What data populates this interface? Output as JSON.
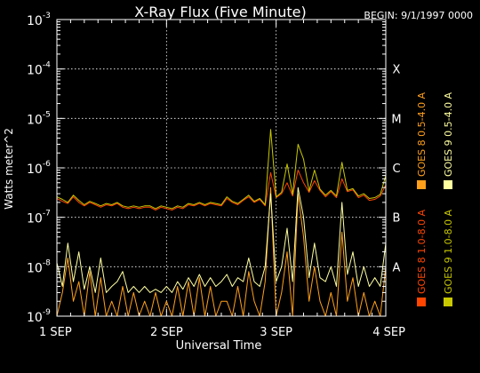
{
  "chart_data": {
    "type": "line",
    "title": "X-Ray Flux (Five Minute)",
    "begin_label": "BEGIN: 9/1/1997 0000",
    "xlabel": "Universal Time",
    "ylabel": "Watts meter^2",
    "y_scale": "log",
    "ylim": [
      1e-09,
      0.001
    ],
    "xlim": [
      0,
      3
    ],
    "grid": true,
    "x_ticks": [
      {
        "value": 0,
        "label": "1 SEP"
      },
      {
        "value": 1,
        "label": "2 SEP"
      },
      {
        "value": 2,
        "label": "3 SEP"
      },
      {
        "value": 3,
        "label": "4 SEP"
      }
    ],
    "y_ticks": [
      {
        "exp": -3,
        "base": "10",
        "sup": "-3"
      },
      {
        "exp": -4,
        "base": "10",
        "sup": "-4"
      },
      {
        "exp": -5,
        "base": "10",
        "sup": "-5"
      },
      {
        "exp": -6,
        "base": "10",
        "sup": "-6"
      },
      {
        "exp": -7,
        "base": "10",
        "sup": "-7"
      },
      {
        "exp": -8,
        "base": "10",
        "sup": "-8"
      },
      {
        "exp": -9,
        "base": "10",
        "sup": "-9"
      }
    ],
    "flare_classes": [
      {
        "label": "X",
        "exp": -4
      },
      {
        "label": "M",
        "exp": -5
      },
      {
        "label": "C",
        "exp": -6
      },
      {
        "label": "B",
        "exp": -7
      },
      {
        "label": "A",
        "exp": -8
      }
    ],
    "series": [
      {
        "name": "GOES 8 1.0-8.0 A",
        "color": "#ff4500",
        "points": [
          [
            0.0,
            2.4e-07
          ],
          [
            0.05,
            2.1e-07
          ],
          [
            0.1,
            1.9e-07
          ],
          [
            0.15,
            2.6e-07
          ],
          [
            0.2,
            2e-07
          ],
          [
            0.25,
            1.7e-07
          ],
          [
            0.3,
            2e-07
          ],
          [
            0.35,
            1.8e-07
          ],
          [
            0.4,
            1.6e-07
          ],
          [
            0.45,
            1.8e-07
          ],
          [
            0.5,
            1.7e-07
          ],
          [
            0.55,
            1.9e-07
          ],
          [
            0.6,
            1.6e-07
          ],
          [
            0.65,
            1.5e-07
          ],
          [
            0.7,
            1.6e-07
          ],
          [
            0.75,
            1.5e-07
          ],
          [
            0.8,
            1.6e-07
          ],
          [
            0.85,
            1.6e-07
          ],
          [
            0.9,
            1.4e-07
          ],
          [
            0.95,
            1.6e-07
          ],
          [
            1.0,
            1.5e-07
          ],
          [
            1.05,
            1.4e-07
          ],
          [
            1.1,
            1.6e-07
          ],
          [
            1.15,
            1.5e-07
          ],
          [
            1.2,
            1.8e-07
          ],
          [
            1.25,
            1.7e-07
          ],
          [
            1.3,
            1.9e-07
          ],
          [
            1.35,
            1.7e-07
          ],
          [
            1.4,
            1.9e-07
          ],
          [
            1.45,
            1.8e-07
          ],
          [
            1.5,
            1.7e-07
          ],
          [
            1.55,
            2.4e-07
          ],
          [
            1.6,
            2e-07
          ],
          [
            1.65,
            1.8e-07
          ],
          [
            1.7,
            2.2e-07
          ],
          [
            1.75,
            2.6e-07
          ],
          [
            1.8,
            2e-07
          ],
          [
            1.85,
            2.3e-07
          ],
          [
            1.9,
            1.7e-07
          ],
          [
            1.95,
            8e-07
          ],
          [
            2.0,
            2.5e-07
          ],
          [
            2.05,
            3e-07
          ],
          [
            2.1,
            5e-07
          ],
          [
            2.15,
            2.7e-07
          ],
          [
            2.2,
            9e-07
          ],
          [
            2.25,
            5e-07
          ],
          [
            2.3,
            3.2e-07
          ],
          [
            2.35,
            5.5e-07
          ],
          [
            2.4,
            3.5e-07
          ],
          [
            2.45,
            2.6e-07
          ],
          [
            2.5,
            3.3e-07
          ],
          [
            2.55,
            2.5e-07
          ],
          [
            2.6,
            6e-07
          ],
          [
            2.65,
            3.3e-07
          ],
          [
            2.7,
            3.6e-07
          ],
          [
            2.75,
            2.5e-07
          ],
          [
            2.8,
            2.8e-07
          ],
          [
            2.85,
            2.2e-07
          ],
          [
            2.9,
            2.3e-07
          ],
          [
            2.95,
            2.7e-07
          ],
          [
            3.0,
            4.5e-07
          ]
        ]
      },
      {
        "name": "GOES 8 0.5-4.0 A",
        "color": "#ff9f1a",
        "points": [
          [
            0.0,
            1e-09
          ],
          [
            0.05,
            3e-09
          ],
          [
            0.1,
            1.5e-08
          ],
          [
            0.15,
            2e-09
          ],
          [
            0.2,
            5e-09
          ],
          [
            0.25,
            1e-09
          ],
          [
            0.3,
            8e-09
          ],
          [
            0.35,
            1e-09
          ],
          [
            0.4,
            6e-09
          ],
          [
            0.45,
            1e-09
          ],
          [
            0.5,
            2e-09
          ],
          [
            0.55,
            1e-09
          ],
          [
            0.6,
            4e-09
          ],
          [
            0.65,
            1e-09
          ],
          [
            0.7,
            3e-09
          ],
          [
            0.75,
            1e-09
          ],
          [
            0.8,
            2e-09
          ],
          [
            0.85,
            1e-09
          ],
          [
            0.9,
            3e-09
          ],
          [
            0.95,
            1e-09
          ],
          [
            1.0,
            2e-09
          ],
          [
            1.05,
            1e-09
          ],
          [
            1.1,
            4e-09
          ],
          [
            1.15,
            1e-09
          ],
          [
            1.2,
            5e-09
          ],
          [
            1.25,
            1e-09
          ],
          [
            1.3,
            6e-09
          ],
          [
            1.35,
            1e-09
          ],
          [
            1.4,
            4e-09
          ],
          [
            1.45,
            1e-09
          ],
          [
            1.5,
            2e-09
          ],
          [
            1.55,
            2e-09
          ],
          [
            1.6,
            1e-09
          ],
          [
            1.65,
            4e-09
          ],
          [
            1.7,
            1e-09
          ],
          [
            1.75,
            8e-09
          ],
          [
            1.8,
            2e-09
          ],
          [
            1.85,
            1e-09
          ],
          [
            1.9,
            5e-09
          ],
          [
            1.95,
            4e-07
          ],
          [
            2.0,
            1e-09
          ],
          [
            2.05,
            3e-09
          ],
          [
            2.1,
            2e-08
          ],
          [
            2.15,
            1e-09
          ],
          [
            2.2,
            3e-07
          ],
          [
            2.25,
            4e-08
          ],
          [
            2.3,
            2e-09
          ],
          [
            2.35,
            1e-08
          ],
          [
            2.4,
            2e-09
          ],
          [
            2.45,
            1e-09
          ],
          [
            2.5,
            3e-09
          ],
          [
            2.55,
            1e-09
          ],
          [
            2.6,
            5e-08
          ],
          [
            2.65,
            2e-09
          ],
          [
            2.7,
            6e-09
          ],
          [
            2.75,
            1e-09
          ],
          [
            2.8,
            3e-09
          ],
          [
            2.85,
            1e-09
          ],
          [
            2.9,
            2e-09
          ],
          [
            2.95,
            1e-09
          ],
          [
            3.0,
            1e-08
          ]
        ]
      },
      {
        "name": "GOES 9 1.0-8.0 A",
        "color": "#c8c800",
        "points": [
          [
            0.0,
            2.6e-07
          ],
          [
            0.05,
            2.3e-07
          ],
          [
            0.1,
            2e-07
          ],
          [
            0.15,
            2.8e-07
          ],
          [
            0.2,
            2.2e-07
          ],
          [
            0.25,
            1.8e-07
          ],
          [
            0.3,
            2.1e-07
          ],
          [
            0.35,
            1.9e-07
          ],
          [
            0.4,
            1.7e-07
          ],
          [
            0.45,
            1.9e-07
          ],
          [
            0.5,
            1.8e-07
          ],
          [
            0.55,
            2e-07
          ],
          [
            0.6,
            1.7e-07
          ],
          [
            0.65,
            1.6e-07
          ],
          [
            0.7,
            1.7e-07
          ],
          [
            0.75,
            1.6e-07
          ],
          [
            0.8,
            1.7e-07
          ],
          [
            0.85,
            1.7e-07
          ],
          [
            0.9,
            1.5e-07
          ],
          [
            0.95,
            1.7e-07
          ],
          [
            1.0,
            1.6e-07
          ],
          [
            1.05,
            1.5e-07
          ],
          [
            1.1,
            1.7e-07
          ],
          [
            1.15,
            1.6e-07
          ],
          [
            1.2,
            1.9e-07
          ],
          [
            1.25,
            1.8e-07
          ],
          [
            1.3,
            2e-07
          ],
          [
            1.35,
            1.8e-07
          ],
          [
            1.4,
            2e-07
          ],
          [
            1.45,
            1.9e-07
          ],
          [
            1.5,
            1.8e-07
          ],
          [
            1.55,
            2.6e-07
          ],
          [
            1.6,
            2.1e-07
          ],
          [
            1.65,
            1.9e-07
          ],
          [
            1.7,
            2.3e-07
          ],
          [
            1.75,
            2.8e-07
          ],
          [
            1.8,
            2.1e-07
          ],
          [
            1.85,
            2.4e-07
          ],
          [
            1.9,
            1.8e-07
          ],
          [
            1.95,
            6e-06
          ],
          [
            2.0,
            2.6e-07
          ],
          [
            2.05,
            3.2e-07
          ],
          [
            2.1,
            1.2e-06
          ],
          [
            2.15,
            2.9e-07
          ],
          [
            2.2,
            3e-06
          ],
          [
            2.25,
            1.5e-06
          ],
          [
            2.3,
            3.4e-07
          ],
          [
            2.35,
            9e-07
          ],
          [
            2.4,
            3.7e-07
          ],
          [
            2.45,
            2.8e-07
          ],
          [
            2.5,
            3.5e-07
          ],
          [
            2.55,
            2.7e-07
          ],
          [
            2.6,
            1.3e-06
          ],
          [
            2.65,
            3.5e-07
          ],
          [
            2.7,
            3.8e-07
          ],
          [
            2.75,
            2.7e-07
          ],
          [
            2.8,
            3e-07
          ],
          [
            2.85,
            2.4e-07
          ],
          [
            2.9,
            2.5e-07
          ],
          [
            2.95,
            2.9e-07
          ],
          [
            3.0,
            7e-07
          ]
        ]
      },
      {
        "name": "GOES 9 0.5-4.0 A",
        "color": "#ffffa0",
        "points": [
          [
            0.0,
            1.2e-08
          ],
          [
            0.05,
            4e-09
          ],
          [
            0.1,
            3e-08
          ],
          [
            0.15,
            5e-09
          ],
          [
            0.2,
            2e-08
          ],
          [
            0.25,
            3.5e-09
          ],
          [
            0.3,
            1e-08
          ],
          [
            0.35,
            3e-09
          ],
          [
            0.4,
            1.5e-08
          ],
          [
            0.45,
            3e-09
          ],
          [
            0.5,
            4e-09
          ],
          [
            0.55,
            5e-09
          ],
          [
            0.6,
            8e-09
          ],
          [
            0.65,
            3e-09
          ],
          [
            0.7,
            4e-09
          ],
          [
            0.75,
            3e-09
          ],
          [
            0.8,
            4e-09
          ],
          [
            0.85,
            3e-09
          ],
          [
            0.9,
            3.5e-09
          ],
          [
            0.95,
            3e-09
          ],
          [
            1.0,
            4e-09
          ],
          [
            1.05,
            3e-09
          ],
          [
            1.1,
            5e-09
          ],
          [
            1.15,
            3.5e-09
          ],
          [
            1.2,
            6e-09
          ],
          [
            1.25,
            4e-09
          ],
          [
            1.3,
            7e-09
          ],
          [
            1.35,
            4e-09
          ],
          [
            1.4,
            6e-09
          ],
          [
            1.45,
            4e-09
          ],
          [
            1.5,
            5e-09
          ],
          [
            1.55,
            7e-09
          ],
          [
            1.6,
            4e-09
          ],
          [
            1.65,
            6e-09
          ],
          [
            1.7,
            5e-09
          ],
          [
            1.75,
            1.5e-08
          ],
          [
            1.8,
            5e-09
          ],
          [
            1.85,
            4e-09
          ],
          [
            1.9,
            1e-08
          ],
          [
            1.95,
            3e-07
          ],
          [
            2.0,
            5e-09
          ],
          [
            2.05,
            1e-08
          ],
          [
            2.1,
            6e-08
          ],
          [
            2.15,
            5e-09
          ],
          [
            2.2,
            4e-07
          ],
          [
            2.25,
            1e-07
          ],
          [
            2.3,
            6e-09
          ],
          [
            2.35,
            3e-08
          ],
          [
            2.4,
            6e-09
          ],
          [
            2.45,
            5e-09
          ],
          [
            2.5,
            1e-08
          ],
          [
            2.55,
            4e-09
          ],
          [
            2.6,
            2e-07
          ],
          [
            2.65,
            7e-09
          ],
          [
            2.7,
            2e-08
          ],
          [
            2.75,
            4e-09
          ],
          [
            2.8,
            1e-08
          ],
          [
            2.85,
            4e-09
          ],
          [
            2.9,
            6e-09
          ],
          [
            2.95,
            4e-09
          ],
          [
            3.0,
            3e-08
          ]
        ]
      }
    ]
  }
}
